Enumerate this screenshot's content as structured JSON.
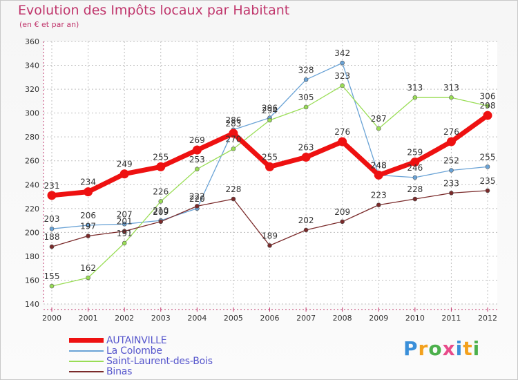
{
  "header": {
    "title": "Evolution des Impôts locaux par Habitant",
    "subtitle": "(en € et par an)"
  },
  "colors": {
    "title": "#c0366c",
    "axis": "#c0366c",
    "grid": "#bfbfbf",
    "legend_text": "#5555cc"
  },
  "chart_data": {
    "type": "line",
    "title": "Evolution des Impôts locaux par Habitant",
    "subtitle": "(en € et par an)",
    "xlabel": "",
    "ylabel": "",
    "categories": [
      "2000",
      "2001",
      "2002",
      "2003",
      "2004",
      "2005",
      "2006",
      "2007",
      "2008",
      "2009",
      "2010",
      "2011",
      "2012"
    ],
    "ylim": [
      140,
      360
    ],
    "yticks": [
      140,
      160,
      180,
      200,
      220,
      240,
      260,
      280,
      300,
      320,
      340,
      360
    ],
    "grid": true,
    "legend_position": "bottom-left",
    "series": [
      {
        "name": "AUTAINVILLE",
        "color": "#ee1111",
        "emphasis": "bold",
        "values": [
          231,
          234,
          249,
          255,
          269,
          283,
          255,
          263,
          276,
          248,
          259,
          276,
          298
        ],
        "labels": [
          "231",
          "234",
          "249",
          "255",
          "269",
          "283",
          "255",
          "263",
          "276",
          "248",
          "259",
          "276",
          "298"
        ]
      },
      {
        "name": "La Colombe",
        "color": "#6aa3d6",
        "emphasis": "normal",
        "values": [
          203,
          206,
          207,
          210,
          220,
          286,
          296,
          328,
          342,
          248,
          246,
          252,
          255
        ],
        "labels": [
          "203",
          "206",
          "207",
          "210",
          "220",
          "286",
          "296",
          "328",
          "342",
          "248",
          "246",
          "252",
          "255"
        ]
      },
      {
        "name": "Saint-Laurent-des-Bois",
        "color": "#99dd55",
        "emphasis": "normal",
        "values": [
          155,
          162,
          191,
          226,
          253,
          270,
          294,
          305,
          323,
          287,
          313,
          313,
          306
        ],
        "labels": [
          "155",
          "162",
          "191",
          "226",
          "253",
          "270",
          "294",
          "305",
          "323",
          "287",
          "313",
          "313",
          "306"
        ]
      },
      {
        "name": "Binas",
        "color": "#7a2a2a",
        "emphasis": "normal",
        "values": [
          188,
          197,
          201,
          209,
          222,
          228,
          189,
          202,
          209,
          223,
          228,
          233,
          235
        ],
        "labels": [
          "188",
          "197",
          "201",
          "209",
          "222",
          "228",
          "189",
          "202",
          "209",
          "223",
          "228",
          "233",
          "235"
        ]
      }
    ]
  },
  "legend": {
    "items": [
      {
        "label": "AUTAINVILLE",
        "color": "#ee1111"
      },
      {
        "label": "La Colombe",
        "color": "#6aa3d6"
      },
      {
        "label": "Saint-Laurent-des-Bois",
        "color": "#99dd55"
      },
      {
        "label": "Binas",
        "color": "#7a2a2a"
      }
    ]
  },
  "logo": {
    "letters": [
      "P",
      "r",
      "o",
      "x",
      "i",
      "t",
      "i"
    ],
    "colors": [
      "#3a8fd9",
      "#f3a11e",
      "#4cb04c",
      "#e84b8a",
      "#3a8fd9",
      "#f3a11e",
      "#4cb04c"
    ]
  }
}
